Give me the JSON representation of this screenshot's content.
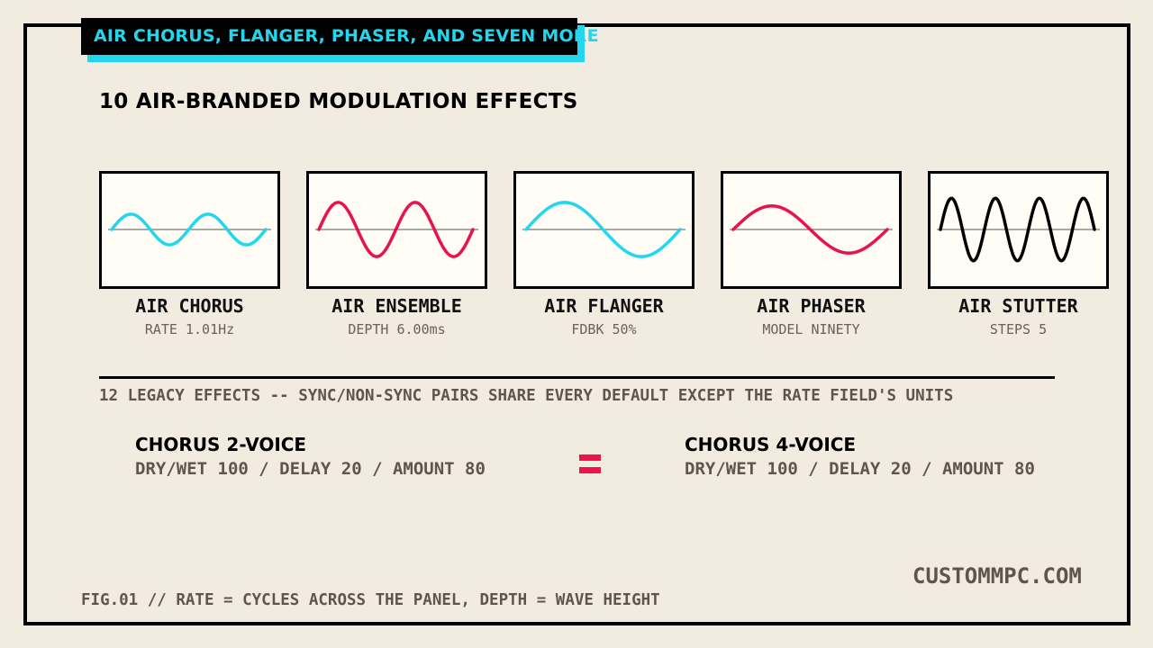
{
  "badge": {
    "text": "AIR CHORUS, FLANGER, PHASER, AND SEVEN MORE"
  },
  "headline": "10 AIR-BRANDED MODULATION EFFECTS",
  "colors": {
    "cyan": "#22d6ee",
    "red": "#e8134b",
    "black": "#000000",
    "equals": "#f0124a"
  },
  "panels": [
    {
      "name": "AIR CHORUS",
      "param": "RATE 1.01Hz",
      "color": "#22d6ee",
      "cycles": 2,
      "depth": 0.26,
      "phase": 0
    },
    {
      "name": "AIR ENSEMBLE",
      "param": "DEPTH 6.00ms",
      "color": "#e8134b",
      "cycles": 2,
      "depth": 0.46,
      "phase": 0
    },
    {
      "name": "AIR FLANGER",
      "param": "FDBK 50%",
      "color": "#22d6ee",
      "cycles": 1,
      "depth": 0.46,
      "phase": 0
    },
    {
      "name": "AIR PHASER",
      "param": "MODEL NINETY",
      "color": "#e8134b",
      "cycles": 1,
      "depth": 0.4,
      "phase": 0
    },
    {
      "name": "AIR STUTTER",
      "param": "STEPS 5",
      "color": "#000000",
      "cycles": 3.5,
      "depth": 0.53,
      "phase": 0
    }
  ],
  "legacy_note": "12 LEGACY EFFECTS -- SYNC/NON-SYNC PAIRS SHARE EVERY DEFAULT EXCEPT THE RATE FIELD'S UNITS",
  "comparison": {
    "left": {
      "title": "CHORUS 2-VOICE",
      "values": "DRY/WET 100 / DELAY 20 / AMOUNT 80"
    },
    "right": {
      "title": "CHORUS 4-VOICE",
      "values": "DRY/WET 100 / DELAY 20 / AMOUNT 80"
    }
  },
  "site": "CUSTOMMPC.COM",
  "caption": "FIG.01 // RATE = CYCLES ACROSS THE PANEL, DEPTH = WAVE HEIGHT"
}
